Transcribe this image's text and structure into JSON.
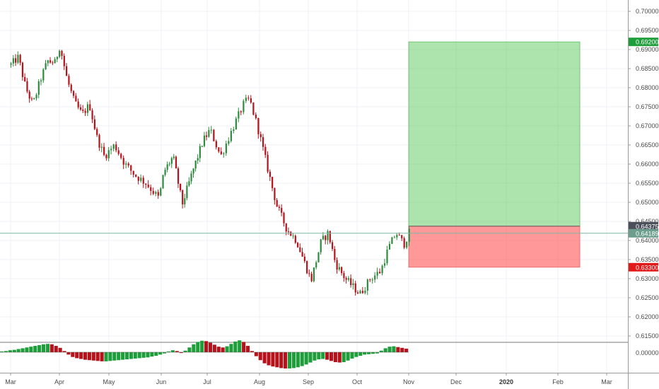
{
  "chart_data": {
    "type": "candlestick",
    "price_axis": {
      "ticks": [
        "0.70000",
        "0.69500",
        "0.69000",
        "0.68500",
        "0.68000",
        "0.67500",
        "0.67000",
        "0.66500",
        "0.66000",
        "0.65500",
        "0.65000",
        "0.64500",
        "0.64000",
        "0.63500",
        "0.63000",
        "0.62500",
        "0.62000",
        "0.61500"
      ],
      "range": [
        0.6115,
        0.7015
      ]
    },
    "oscillator_axis": {
      "ticks": [
        "0.00000"
      ]
    },
    "time_axis": {
      "labels": [
        {
          "text": "Mar",
          "bold": false
        },
        {
          "text": "Apr",
          "bold": false
        },
        {
          "text": "May",
          "bold": false
        },
        {
          "text": "Jun",
          "bold": false
        },
        {
          "text": "Jul",
          "bold": false
        },
        {
          "text": "Aug",
          "bold": false
        },
        {
          "text": "Sep",
          "bold": false
        },
        {
          "text": "Oct",
          "bold": false
        },
        {
          "text": "Nov",
          "bold": false
        },
        {
          "text": "Dec",
          "bold": false
        },
        {
          "text": "2020",
          "bold": true
        },
        {
          "text": "Feb",
          "bold": false
        },
        {
          "text": "Mar",
          "bold": false
        }
      ]
    },
    "position": {
      "type": "long",
      "entry": 0.64375,
      "take_profit": 0.692,
      "stop_loss": 0.633,
      "current": 0.64189,
      "start_month_index": 8.0,
      "end_month_index": 11.45
    },
    "price_tags": [
      {
        "label": "0.69200",
        "value": 0.692,
        "color": "#1e9e3a"
      },
      {
        "label": "0.64375",
        "value": 0.64375,
        "color": "#4a4f5a"
      },
      {
        "label": "0.64189",
        "value": 0.64189,
        "color": "#6b9e8c"
      },
      {
        "label": "0.63300",
        "value": 0.633,
        "color": "#e31919"
      }
    ],
    "candle_colors": {
      "up": "#2e8b3e",
      "down": "#b5121b"
    },
    "close_path": [
      [
        0.0,
        0.686
      ],
      [
        0.15,
        0.688
      ],
      [
        0.3,
        0.68
      ],
      [
        0.45,
        0.6755
      ],
      [
        0.6,
        0.682
      ],
      [
        0.75,
        0.687
      ],
      [
        0.9,
        0.6865
      ],
      [
        1.0,
        0.691
      ],
      [
        1.15,
        0.682
      ],
      [
        1.3,
        0.676
      ],
      [
        1.45,
        0.673
      ],
      [
        1.6,
        0.6755
      ],
      [
        1.75,
        0.667
      ],
      [
        1.9,
        0.662
      ],
      [
        2.1,
        0.665
      ],
      [
        2.3,
        0.66
      ],
      [
        2.5,
        0.657
      ],
      [
        2.7,
        0.655
      ],
      [
        2.95,
        0.651
      ],
      [
        3.05,
        0.658
      ],
      [
        3.25,
        0.662
      ],
      [
        3.45,
        0.6495
      ],
      [
        3.7,
        0.659
      ],
      [
        3.9,
        0.666
      ],
      [
        4.05,
        0.669
      ],
      [
        4.25,
        0.662
      ],
      [
        4.5,
        0.67
      ],
      [
        4.7,
        0.676
      ],
      [
        4.8,
        0.677
      ],
      [
        4.95,
        0.67
      ],
      [
        5.1,
        0.662
      ],
      [
        5.25,
        0.654
      ],
      [
        5.35,
        0.649
      ],
      [
        5.55,
        0.643
      ],
      [
        5.75,
        0.64
      ],
      [
        5.95,
        0.633
      ],
      [
        6.05,
        0.6295
      ],
      [
        6.25,
        0.6395
      ],
      [
        6.4,
        0.642
      ],
      [
        6.55,
        0.634
      ],
      [
        6.75,
        0.63
      ],
      [
        6.9,
        0.628
      ],
      [
        7.05,
        0.626
      ],
      [
        7.25,
        0.63
      ],
      [
        7.45,
        0.632
      ],
      [
        7.6,
        0.638
      ],
      [
        7.75,
        0.642
      ],
      [
        7.9,
        0.639
      ],
      [
        8.0,
        0.642
      ]
    ],
    "oscillator": [
      0.2,
      0.3,
      0.5,
      0.6,
      0.8,
      1.0,
      1.2,
      1.4,
      1.6,
      1.8,
      2.0,
      2.1,
      2.0,
      1.6,
      1.1,
      0.3,
      -0.6,
      -1.2,
      -1.5,
      -1.7,
      -1.9,
      -2.0,
      -2.1,
      -2.2,
      -2.3,
      -2.3,
      -2.2,
      -2.1,
      -2.0,
      -1.9,
      -1.8,
      -1.7,
      -1.6,
      -1.5,
      -1.4,
      -1.3,
      -1.1,
      -0.9,
      -0.6,
      -0.3,
      0.2,
      0.5,
      0.3,
      -0.2,
      0.4,
      1.2,
      2.0,
      2.6,
      2.9,
      2.8,
      2.4,
      1.9,
      1.4,
      1.2,
      1.5,
      2.1,
      2.7,
      3.0,
      2.6,
      1.6,
      0.3,
      -1.0,
      -2.0,
      -2.8,
      -3.3,
      -3.6,
      -3.8,
      -4.0,
      -4.1,
      -4.1,
      -4.0,
      -3.8,
      -3.5,
      -3.1,
      -2.6,
      -2.1,
      -1.8,
      -1.7,
      -1.9,
      -2.2,
      -2.5,
      -2.6,
      -2.5,
      -2.1,
      -1.6,
      -1.2,
      -0.9,
      -0.6,
      -0.5,
      -0.4,
      -0.3,
      0.4,
      1.0,
      1.4,
      1.5,
      1.3,
      1.1,
      0.9
    ]
  }
}
